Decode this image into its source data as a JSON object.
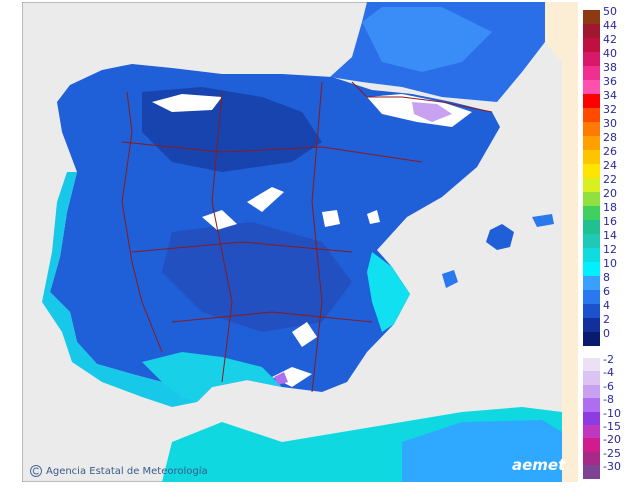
{
  "legend": {
    "items": [
      {
        "label": "50",
        "color": "#8b3a12"
      },
      {
        "label": "44",
        "color": "#a01830"
      },
      {
        "label": "42",
        "color": "#c01040"
      },
      {
        "label": "40",
        "color": "#d81868"
      },
      {
        "label": "38",
        "color": "#f03090"
      },
      {
        "label": "36",
        "color": "#ff50b0"
      },
      {
        "label": "34",
        "color": "#ff0000"
      },
      {
        "label": "32",
        "color": "#ff4a00"
      },
      {
        "label": "30",
        "color": "#ff7a00"
      },
      {
        "label": "28",
        "color": "#ffa000"
      },
      {
        "label": "26",
        "color": "#ffc400"
      },
      {
        "label": "24",
        "color": "#ffe400"
      },
      {
        "label": "22",
        "color": "#d8f020"
      },
      {
        "label": "20",
        "color": "#90e040"
      },
      {
        "label": "18",
        "color": "#40d060"
      },
      {
        "label": "16",
        "color": "#20c090"
      },
      {
        "label": "14",
        "color": "#20c8b8"
      },
      {
        "label": "12",
        "color": "#10dce0"
      },
      {
        "label": "10",
        "color": "#00f0ff"
      },
      {
        "label": "8",
        "color": "#3aa0ff"
      },
      {
        "label": "6",
        "color": "#2a78ee"
      },
      {
        "label": "4",
        "color": "#1c52cc"
      },
      {
        "label": "2",
        "color": "#12309c"
      },
      {
        "label": "0",
        "color": "#0a1a6c"
      },
      {
        "label": "-2",
        "color": "#ece0f4"
      },
      {
        "label": "-4",
        "color": "#dcc4f2"
      },
      {
        "label": "-6",
        "color": "#c8a2f0"
      },
      {
        "label": "-8",
        "color": "#ae6ef0"
      },
      {
        "label": "-10",
        "color": "#8c3ce0"
      },
      {
        "label": "-15",
        "color": "#c038c0"
      },
      {
        "label": "-20",
        "color": "#d01c8c"
      },
      {
        "label": "-25",
        "color": "#a82a88"
      },
      {
        "label": "-30",
        "color": "#7e4494"
      }
    ]
  },
  "footer": {
    "credit": "Agencia Estatal de Meteorología",
    "logo": "aemet"
  }
}
